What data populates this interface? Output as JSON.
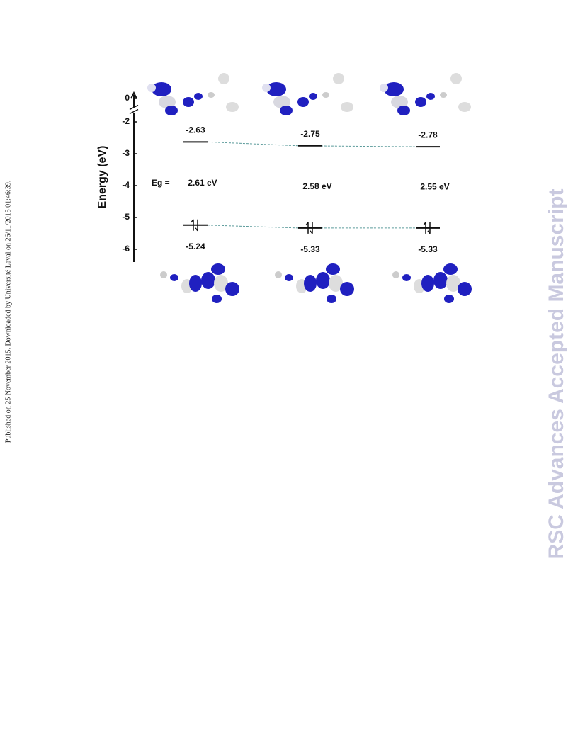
{
  "side_note": "Published on 25 November 2015. Downloaded by Université Laval on 26/11/2015 01:46:39.",
  "watermark": "RSC Advances Accepted Manuscript",
  "chart_data": {
    "type": "energy-levels",
    "ylabel": "Energy (eV)",
    "ylim": [
      -6.4,
      0.3
    ],
    "yticks": [
      0,
      -2,
      -3,
      -4,
      -5,
      -6
    ],
    "axis_break": true,
    "lumo": {
      "values": [
        -2.63,
        -2.75,
        -2.78
      ]
    },
    "homo": {
      "values": [
        -5.24,
        -5.33,
        -5.33
      ]
    },
    "gap": {
      "label": "Eg =",
      "values": [
        2.61,
        2.58,
        2.55
      ],
      "value_labels": [
        "2.61 eV",
        "2.58 eV",
        "2.55 eV"
      ]
    }
  }
}
